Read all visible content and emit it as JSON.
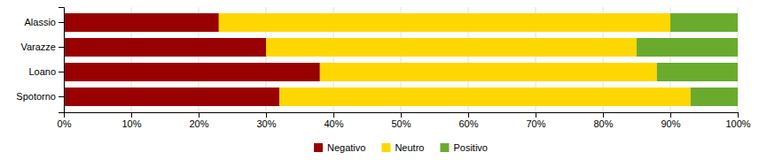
{
  "chart_data": {
    "type": "bar",
    "orientation": "horizontal",
    "stacked": true,
    "categories": [
      "Alassio",
      "Varazze",
      "Loano",
      "Spotorno"
    ],
    "series": [
      {
        "name": "Negativo",
        "color": "#990000",
        "values": [
          23,
          30,
          38,
          32
        ]
      },
      {
        "name": "Neutro",
        "color": "#FFD700",
        "values": [
          67,
          55,
          50,
          61
        ]
      },
      {
        "name": "Positivo",
        "color": "#6AAB2E",
        "values": [
          10,
          15,
          12,
          7
        ]
      }
    ],
    "xlim": [
      0,
      100
    ],
    "xticks": [
      {
        "value": 0,
        "label": "0%"
      },
      {
        "value": 10,
        "label": "10%"
      },
      {
        "value": 20,
        "label": "20%"
      },
      {
        "value": 30,
        "label": "30%"
      },
      {
        "value": 40,
        "label": "40%"
      },
      {
        "value": 50,
        "label": "50%"
      },
      {
        "value": 60,
        "label": "60%"
      },
      {
        "value": 70,
        "label": "70%"
      },
      {
        "value": 80,
        "label": "80%"
      },
      {
        "value": 90,
        "label": "90%"
      },
      {
        "value": 100,
        "label": "100%"
      }
    ],
    "grid": true,
    "legend": "bottom"
  }
}
